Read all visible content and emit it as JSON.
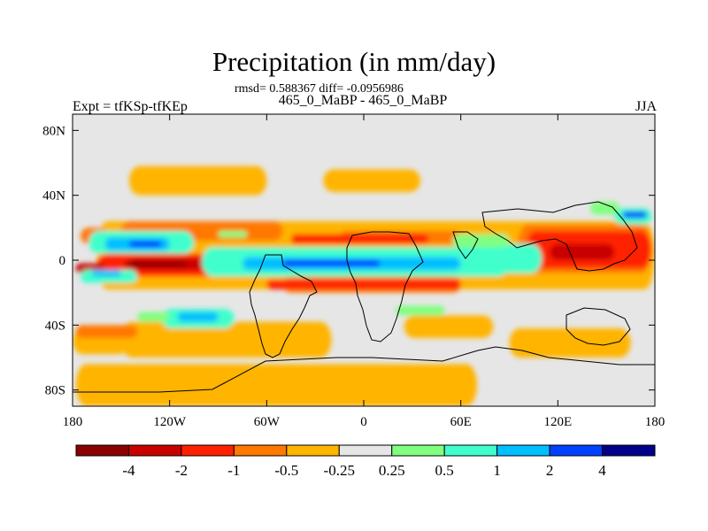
{
  "chart_data": {
    "type": "heatmap",
    "title": "Precipitation (in mm/day)",
    "stats_text": "rmsd= 0.588367 diff= -0.0956986",
    "subtitle": "465_0_MaBP - 465_0_MaBP",
    "left_label": "Expt = tfKSp-tfKEp",
    "right_label": "JJA",
    "xlim": [
      -180,
      180
    ],
    "ylim": [
      -90,
      90
    ],
    "x_ticks": [
      {
        "value": -180,
        "label": "180"
      },
      {
        "value": -120,
        "label": "120W"
      },
      {
        "value": -60,
        "label": "60W"
      },
      {
        "value": 0,
        "label": "0"
      },
      {
        "value": 60,
        "label": "60E"
      },
      {
        "value": 120,
        "label": "120E"
      },
      {
        "value": 180,
        "label": "180"
      }
    ],
    "y_ticks": [
      {
        "value": 80,
        "label": "80N"
      },
      {
        "value": 40,
        "label": "40N"
      },
      {
        "value": 0,
        "label": "0"
      },
      {
        "value": -40,
        "label": "40S"
      },
      {
        "value": -80,
        "label": "80S"
      }
    ],
    "colorbar": {
      "colors": [
        "#8b0000",
        "#c80000",
        "#ff2000",
        "#ff7800",
        "#ffb400",
        "#e6e6e6",
        "#80ff80",
        "#40ffcc",
        "#00bfff",
        "#0040ff",
        "#00008b"
      ],
      "labels": [
        "-4",
        "-2",
        "-1",
        "-0.5",
        "-0.25",
        "0.25",
        "0.5",
        "1",
        "2",
        "4"
      ]
    },
    "regions": [
      {
        "level": 4,
        "lon": [
          -165,
          180
        ],
        "lat": [
          -18,
          24
        ]
      },
      {
        "level": 4,
        "lon": [
          -178,
          70
        ],
        "lat": [
          -90,
          -64
        ]
      },
      {
        "level": 4,
        "lon": [
          -150,
          -20
        ],
        "lat": [
          -60,
          -38
        ]
      },
      {
        "level": 4,
        "lon": [
          -145,
          -60
        ],
        "lat": [
          40,
          58
        ]
      },
      {
        "level": 4,
        "lon": [
          -25,
          35
        ],
        "lat": [
          42,
          56
        ]
      },
      {
        "level": 4,
        "lon": [
          25,
          80
        ],
        "lat": [
          -48,
          -34
        ]
      },
      {
        "level": 4,
        "lon": [
          90,
          165
        ],
        "lat": [
          -60,
          -42
        ]
      },
      {
        "level": 4,
        "lon": [
          -180,
          -145
        ],
        "lat": [
          -58,
          -42
        ]
      },
      {
        "level": 3,
        "lon": [
          -178,
          -140
        ],
        "lat": [
          -48,
          -40
        ]
      },
      {
        "level": 3,
        "lon": [
          -150,
          -50
        ],
        "lat": [
          12,
          24
        ]
      },
      {
        "level": 3,
        "lon": [
          -15,
          60
        ],
        "lat": [
          10,
          18
        ]
      },
      {
        "level": 3,
        "lon": [
          -50,
          60
        ],
        "lat": [
          -20,
          -10
        ]
      },
      {
        "level": 3,
        "lon": [
          95,
          178
        ],
        "lat": [
          -8,
          22
        ]
      },
      {
        "level": 3,
        "lon": [
          -175,
          -158
        ],
        "lat": [
          10,
          20
        ]
      },
      {
        "level": 2,
        "lon": [
          -165,
          -70
        ],
        "lat": [
          -10,
          4
        ]
      },
      {
        "level": 2,
        "lon": [
          -60,
          60
        ],
        "lat": [
          -18,
          -12
        ]
      },
      {
        "level": 2,
        "lon": [
          100,
          178
        ],
        "lat": [
          -5,
          18
        ]
      },
      {
        "level": 2,
        "lon": [
          -45,
          40
        ],
        "lat": [
          10,
          16
        ]
      },
      {
        "level": 1,
        "lon": [
          -145,
          -85
        ],
        "lat": [
          -6,
          1
        ]
      },
      {
        "level": 1,
        "lon": [
          115,
          155
        ],
        "lat": [
          0,
          10
        ]
      },
      {
        "level": 1,
        "lon": [
          -178,
          -160
        ],
        "lat": [
          -8,
          -2
        ]
      },
      {
        "level": 0,
        "lon": [
          -148,
          -110
        ],
        "lat": [
          -4,
          -1
        ]
      },
      {
        "level": 7,
        "lon": [
          -170,
          -105
        ],
        "lat": [
          4,
          18
        ]
      },
      {
        "level": 7,
        "lon": [
          -100,
          90
        ],
        "lat": [
          -10,
          8
        ]
      },
      {
        "level": 7,
        "lon": [
          -175,
          -140
        ],
        "lat": [
          -14,
          -6
        ]
      },
      {
        "level": 7,
        "lon": [
          -125,
          -80
        ],
        "lat": [
          -42,
          -30
        ]
      },
      {
        "level": 7,
        "lon": [
          75,
          110
        ],
        "lat": [
          -8,
          10
        ]
      },
      {
        "level": 7,
        "lon": [
          155,
          178
        ],
        "lat": [
          22,
          32
        ]
      },
      {
        "level": 8,
        "lon": [
          -160,
          -120
        ],
        "lat": [
          6,
          14
        ]
      },
      {
        "level": 8,
        "lon": [
          -75,
          60
        ],
        "lat": [
          -6,
          2
        ]
      },
      {
        "level": 8,
        "lon": [
          -168,
          -150
        ],
        "lat": [
          -10,
          -6
        ]
      },
      {
        "level": 8,
        "lon": [
          -115,
          -90
        ],
        "lat": [
          -38,
          -32
        ]
      },
      {
        "level": 9,
        "lon": [
          -145,
          -125
        ],
        "lat": [
          8,
          12
        ]
      },
      {
        "level": 9,
        "lon": [
          -50,
          10
        ],
        "lat": [
          -4,
          0
        ]
      },
      {
        "level": 9,
        "lon": [
          160,
          175
        ],
        "lat": [
          26,
          30
        ]
      },
      {
        "level": 6,
        "lon": [
          55,
          90
        ],
        "lat": [
          8,
          16
        ]
      },
      {
        "level": 6,
        "lon": [
          -140,
          -120
        ],
        "lat": [
          -38,
          -32
        ]
      },
      {
        "level": 6,
        "lon": [
          140,
          158
        ],
        "lat": [
          28,
          36
        ]
      },
      {
        "level": 6,
        "lon": [
          -90,
          -72
        ],
        "lat": [
          14,
          18
        ]
      },
      {
        "level": 6,
        "lon": [
          20,
          50
        ],
        "lat": [
          -34,
          -28
        ]
      }
    ]
  }
}
